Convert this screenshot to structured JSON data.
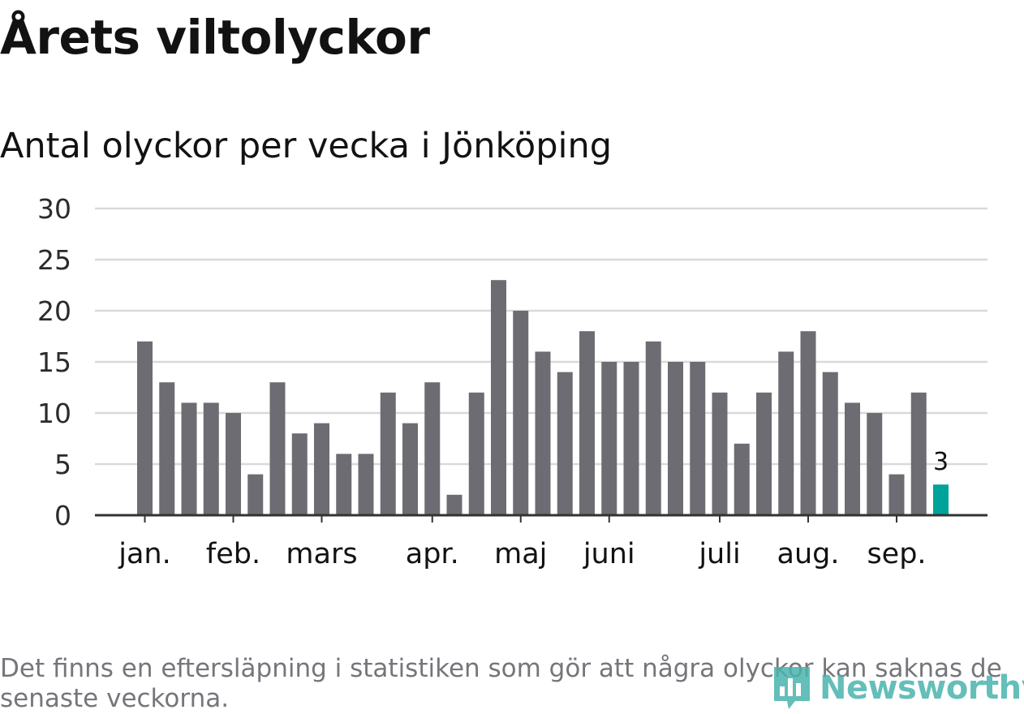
{
  "title": "Årets viltolyckor",
  "subtitle": "Antal olyckor per vecka i Jönköping",
  "note": "Det finns en eftersläpning i statistiken som gör att några olyckor kan saknas de senaste veckorna.",
  "brand": {
    "name": "Newsworthy",
    "color": "#49b3ad"
  },
  "colors": {
    "bar": "#6d6c72",
    "highlight": "#00a39a",
    "grid": "#d9d9d9",
    "axis": "#333333"
  },
  "chart_data": {
    "type": "bar",
    "title": "Årets viltolyckor",
    "subtitle": "Antal olyckor per vecka i Jönköping",
    "xlabel": "",
    "ylabel": "",
    "ylim": [
      0,
      30
    ],
    "yticks": [
      "0",
      "5",
      "10",
      "15",
      "20",
      "25",
      "30"
    ],
    "grid": true,
    "values": [
      17,
      13,
      11,
      11,
      10,
      4,
      13,
      8,
      9,
      6,
      6,
      12,
      9,
      13,
      2,
      12,
      23,
      20,
      16,
      14,
      18,
      15,
      15,
      17,
      15,
      15,
      12,
      7,
      12,
      16,
      18,
      14,
      11,
      10,
      4,
      12,
      3
    ],
    "month_labels": [
      {
        "label": "jan.",
        "week": 1
      },
      {
        "label": "feb.",
        "week": 5
      },
      {
        "label": "mars",
        "week": 9
      },
      {
        "label": "apr.",
        "week": 14
      },
      {
        "label": "maj",
        "week": 18
      },
      {
        "label": "juni",
        "week": 22
      },
      {
        "label": "juli",
        "week": 27
      },
      {
        "label": "aug.",
        "week": 31
      },
      {
        "label": "sep.",
        "week": 35
      }
    ],
    "highlight_index": 36,
    "highlight_label": "3"
  }
}
